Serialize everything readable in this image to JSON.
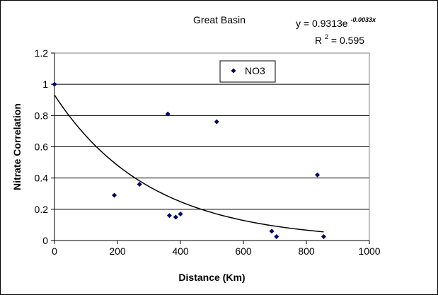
{
  "chart_data": {
    "type": "scatter",
    "title": "Great Basin",
    "xlabel": "Distance (Km)",
    "ylabel": "Nitrate Correlation",
    "xlim": [
      0,
      1000
    ],
    "ylim": [
      0,
      1.2
    ],
    "x_ticks": [
      "0",
      "200",
      "400",
      "600",
      "800",
      "1000"
    ],
    "y_ticks": [
      "0",
      "0.2",
      "0.4",
      "0.6",
      "0.8",
      "1",
      "1.2"
    ],
    "x_tick_values": [
      0,
      200,
      400,
      600,
      800,
      1000
    ],
    "y_tick_values": [
      0,
      0.2,
      0.4,
      0.6,
      0.8,
      1.0,
      1.2
    ],
    "grid": "horizontal",
    "legend_position": "top-right",
    "series": [
      {
        "name": "NO3",
        "color": "#00006e",
        "marker": "diamond",
        "points": [
          {
            "x": 0,
            "y": 1.0
          },
          {
            "x": 190,
            "y": 0.29
          },
          {
            "x": 270,
            "y": 0.36
          },
          {
            "x": 360,
            "y": 0.81
          },
          {
            "x": 365,
            "y": 0.16
          },
          {
            "x": 385,
            "y": 0.15
          },
          {
            "x": 400,
            "y": 0.17
          },
          {
            "x": 515,
            "y": 0.76
          },
          {
            "x": 690,
            "y": 0.06
          },
          {
            "x": 705,
            "y": 0.025
          },
          {
            "x": 835,
            "y": 0.42
          },
          {
            "x": 855,
            "y": 0.025
          }
        ]
      }
    ],
    "trendline": {
      "type": "exponential",
      "a": 0.9313,
      "b": -0.0033,
      "x_range": [
        0,
        855
      ],
      "equation_prefix": "y = 0.9313e",
      "equation_exponent": "-0.0033x",
      "r2_prefix": "R",
      "r2_sup": "2",
      "r2_suffix": " = 0.595"
    }
  }
}
